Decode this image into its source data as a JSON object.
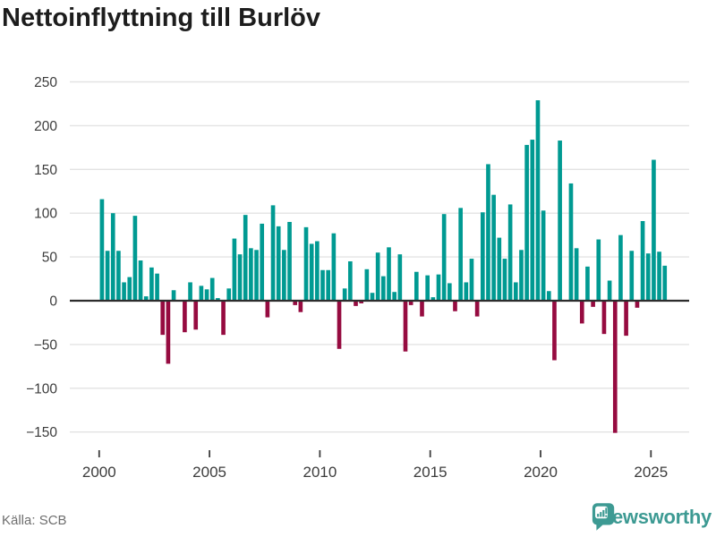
{
  "title": "Nettoinflyttning till Burlöv",
  "source": "Källa: SCB",
  "brand": {
    "name": "Newsworthy"
  },
  "colors": {
    "positive_bar": "#009a92",
    "negative_bar": "#960b40",
    "grid_line": "#e3e3e3",
    "zero_axis": "#2d2d2d",
    "tick_mark": "#3f3f3f",
    "axis_label": "#3c3c3c",
    "title_text": "#1d1d1d",
    "source_text": "#6e6e6e",
    "brand_teal": "#3d9a93"
  },
  "chart_data": {
    "type": "bar",
    "title": "Nettoinflyttning till Burlöv",
    "frequency": "quarterly",
    "start_period": "2000-Q1",
    "end_period": "2025-Q3",
    "xlabel": "",
    "ylabel": "",
    "grid": true,
    "legend": false,
    "ylim": [
      -175,
      260
    ],
    "y_ticks": [
      250,
      200,
      150,
      100,
      50,
      0,
      -50,
      -100,
      -150
    ],
    "x_ticks": [
      2000,
      2005,
      2010,
      2015,
      2020,
      2025
    ],
    "values": [
      116,
      57,
      100,
      57,
      21,
      27,
      97,
      46,
      5,
      38,
      31,
      -39,
      -72,
      12,
      0,
      -36,
      21,
      -33,
      17,
      13,
      26,
      3,
      -39,
      14,
      71,
      53,
      98,
      60,
      58,
      88,
      -19,
      109,
      85,
      58,
      90,
      -5,
      -13,
      84,
      65,
      68,
      35,
      35,
      77,
      -55,
      14,
      45,
      -6,
      -3,
      36,
      9,
      55,
      28,
      61,
      10,
      53,
      -58,
      -5,
      33,
      -18,
      29,
      4,
      30,
      99,
      20,
      -12,
      106,
      21,
      48,
      -18,
      101,
      156,
      121,
      72,
      48,
      110,
      21,
      58,
      178,
      184,
      229,
      103,
      11,
      -68,
      183,
      0,
      134,
      60,
      -26,
      39,
      -7,
      70,
      -38,
      23,
      -151,
      75,
      -40,
      57,
      -8,
      91,
      54,
      161,
      56,
      40
    ]
  }
}
